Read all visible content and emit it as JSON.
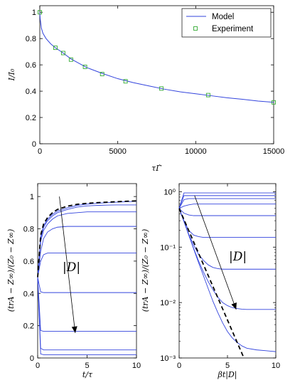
{
  "chart_data": [
    {
      "type": "line",
      "xlabel": "τΓ̇",
      "ylabel": "I/I₀",
      "xlim": [
        0,
        15000
      ],
      "ylim": [
        0,
        1.05
      ],
      "xticks": [
        0,
        5000,
        10000,
        15000
      ],
      "yticks": [
        0,
        0.2,
        0.4,
        0.6,
        0.8,
        1
      ],
      "ytick_labels": [
        "0",
        "0.2",
        "0.4",
        "0.6",
        "0.8",
        "1"
      ],
      "grid": false,
      "legend": "top-right",
      "series": [
        {
          "name": "Model",
          "style": "line",
          "color": "#3344dd",
          "x": [
            0,
            25,
            100,
            200,
            400,
            700,
            1000,
            1500,
            2000,
            3000,
            4000,
            5000,
            6000,
            7000,
            8000,
            9000,
            10000,
            11000,
            12000,
            13000,
            14000,
            15000
          ],
          "y": [
            1.0,
            0.95,
            0.88,
            0.84,
            0.8,
            0.76,
            0.73,
            0.69,
            0.645,
            0.58,
            0.535,
            0.495,
            0.465,
            0.44,
            0.415,
            0.395,
            0.38,
            0.365,
            0.35,
            0.338,
            0.325,
            0.315
          ]
        },
        {
          "name": "Experiment",
          "style": "marker",
          "color": "#33aa33",
          "x": [
            0,
            1000,
            1500,
            2000,
            2900,
            4000,
            5500,
            7800,
            10800,
            15000
          ],
          "y": [
            1.0,
            0.73,
            0.69,
            0.64,
            0.585,
            0.53,
            0.475,
            0.42,
            0.37,
            0.315
          ]
        }
      ]
    },
    {
      "type": "line",
      "xlabel": "t/τ",
      "ylabel": "(trA − Z∞)/(Z₀ − Z∞)",
      "xlim": [
        0,
        10
      ],
      "ylim": [
        0,
        1.08
      ],
      "xticks": [
        0,
        5,
        10
      ],
      "yticks": [
        0,
        0.2,
        0.4,
        0.6,
        0.8,
        1
      ],
      "ytick_labels": [
        "0",
        "0.2",
        "0.4",
        "0.6",
        "0.8",
        "1"
      ],
      "annotation": "|D|",
      "arrow": {
        "from": [
          2.2,
          1.0
        ],
        "to": [
          3.8,
          0.155
        ]
      },
      "grid": false,
      "color": "#3344dd",
      "limit_color": "#000000",
      "x": [
        0,
        0.3,
        0.6,
        1,
        1.5,
        2,
        3,
        4,
        5,
        6,
        7,
        8,
        9,
        10
      ],
      "series": [
        {
          "values": [
            0.5,
            0.75,
            0.82,
            0.86,
            0.89,
            0.91,
            0.93,
            0.945,
            0.953,
            0.958,
            0.962,
            0.965,
            0.968,
            0.97
          ]
        },
        {
          "values": [
            0.5,
            0.74,
            0.81,
            0.85,
            0.88,
            0.9,
            0.92,
            0.935,
            0.942,
            0.945,
            0.947,
            0.948,
            0.948,
            0.948
          ]
        },
        {
          "values": [
            0.5,
            0.72,
            0.79,
            0.83,
            0.86,
            0.88,
            0.895,
            0.9,
            0.905,
            0.905,
            0.905,
            0.905,
            0.905,
            0.905
          ]
        },
        {
          "values": [
            0.5,
            0.66,
            0.74,
            0.78,
            0.8,
            0.81,
            0.815,
            0.815,
            0.815,
            0.815,
            0.815,
            0.815,
            0.815,
            0.815
          ]
        },
        {
          "values": [
            0.5,
            0.6,
            0.64,
            0.65,
            0.65,
            0.65,
            0.65,
            0.65,
            0.65,
            0.65,
            0.65,
            0.65,
            0.65,
            0.65
          ]
        },
        {
          "values": [
            0.5,
            0.41,
            0.405,
            0.405,
            0.405,
            0.405,
            0.405,
            0.405,
            0.405,
            0.405,
            0.405,
            0.405,
            0.405,
            0.405
          ]
        },
        {
          "values": [
            0.5,
            0.17,
            0.165,
            0.165,
            0.165,
            0.165,
            0.165,
            0.165,
            0.165,
            0.165,
            0.165,
            0.165,
            0.165,
            0.165
          ]
        },
        {
          "values": [
            0.5,
            0.06,
            0.05,
            0.05,
            0.05,
            0.05,
            0.05,
            0.05,
            0.05,
            0.05,
            0.05,
            0.05,
            0.05,
            0.05
          ]
        },
        {
          "values": [
            0.5,
            0.025,
            0.02,
            0.02,
            0.02,
            0.02,
            0.02,
            0.02,
            0.02,
            0.02,
            0.02,
            0.02,
            0.02,
            0.02
          ]
        }
      ],
      "limit_series": {
        "style": "dashed",
        "values": [
          0.5,
          0.76,
          0.83,
          0.87,
          0.9,
          0.92,
          0.94,
          0.952,
          0.958,
          0.962,
          0.965,
          0.968,
          0.971,
          0.973
        ]
      }
    },
    {
      "type": "line",
      "xlabel": "βt|D|",
      "ylabel": "(trA − Z∞)/(Z₀ − Z∞)",
      "xlim": [
        0,
        10
      ],
      "ylim": [
        0.001,
        1.4
      ],
      "yscale": "log",
      "xticks": [
        0,
        5,
        10
      ],
      "yticks": [
        0.001,
        0.01,
        0.1,
        1
      ],
      "ytick_labels": [
        "10⁻³",
        "10⁻²",
        "10⁻¹",
        "10⁰"
      ],
      "annotation": "|D|",
      "arrow": {
        "from": [
          1.6,
          0.85
        ],
        "to": [
          5.9,
          0.0075
        ]
      },
      "grid": false,
      "color": "#3344dd",
      "limit_color": "#000000",
      "x": [
        0,
        0.5,
        1,
        1.5,
        2,
        2.5,
        3,
        3.5,
        4,
        4.5,
        5,
        5.5,
        6,
        6.5,
        7,
        8,
        9,
        10
      ],
      "series": [
        {
          "values": [
            0.5,
            0.95,
            0.95,
            0.95,
            0.95,
            0.95,
            0.95,
            0.95,
            0.95,
            0.95,
            0.95,
            0.95,
            0.95,
            0.95,
            0.95,
            0.95,
            0.95,
            0.95
          ]
        },
        {
          "values": [
            0.5,
            0.85,
            0.85,
            0.85,
            0.85,
            0.85,
            0.85,
            0.85,
            0.85,
            0.85,
            0.85,
            0.85,
            0.85,
            0.85,
            0.85,
            0.85,
            0.85,
            0.85
          ]
        },
        {
          "values": [
            0.5,
            0.72,
            0.75,
            0.75,
            0.75,
            0.75,
            0.75,
            0.75,
            0.75,
            0.75,
            0.75,
            0.75,
            0.75,
            0.75,
            0.75,
            0.75,
            0.75,
            0.75
          ]
        },
        {
          "values": [
            0.5,
            0.55,
            0.58,
            0.6,
            0.6,
            0.6,
            0.6,
            0.6,
            0.6,
            0.6,
            0.6,
            0.6,
            0.6,
            0.6,
            0.6,
            0.6,
            0.6,
            0.6
          ]
        },
        {
          "values": [
            0.5,
            0.41,
            0.38,
            0.37,
            0.37,
            0.37,
            0.37,
            0.37,
            0.37,
            0.37,
            0.37,
            0.37,
            0.37,
            0.37,
            0.37,
            0.37,
            0.37,
            0.37
          ]
        },
        {
          "values": [
            0.5,
            0.3,
            0.2,
            0.165,
            0.155,
            0.15,
            0.15,
            0.15,
            0.15,
            0.15,
            0.15,
            0.15,
            0.15,
            0.15,
            0.15,
            0.15,
            0.15,
            0.15
          ]
        },
        {
          "values": [
            0.5,
            0.29,
            0.17,
            0.11,
            0.075,
            0.058,
            0.048,
            0.043,
            0.041,
            0.04,
            0.04,
            0.04,
            0.04,
            0.04,
            0.04,
            0.04,
            0.04,
            0.04
          ]
        },
        {
          "values": [
            0.5,
            0.29,
            0.165,
            0.095,
            0.057,
            0.036,
            0.024,
            0.017,
            0.0125,
            0.01,
            0.0088,
            0.0081,
            0.0078,
            0.0076,
            0.0075,
            0.0075,
            0.0075,
            0.0075
          ]
        },
        {
          "values": [
            0.5,
            0.29,
            0.165,
            0.093,
            0.053,
            0.031,
            0.018,
            0.0105,
            0.0066,
            0.0043,
            0.003,
            0.0023,
            0.0019,
            0.00165,
            0.0015,
            0.0014,
            0.00135,
            0.0013
          ]
        }
      ],
      "limit_series": {
        "style": "dashed",
        "x": [
          0,
          6.7
        ],
        "values": [
          0.5,
          0.001
        ]
      }
    }
  ]
}
